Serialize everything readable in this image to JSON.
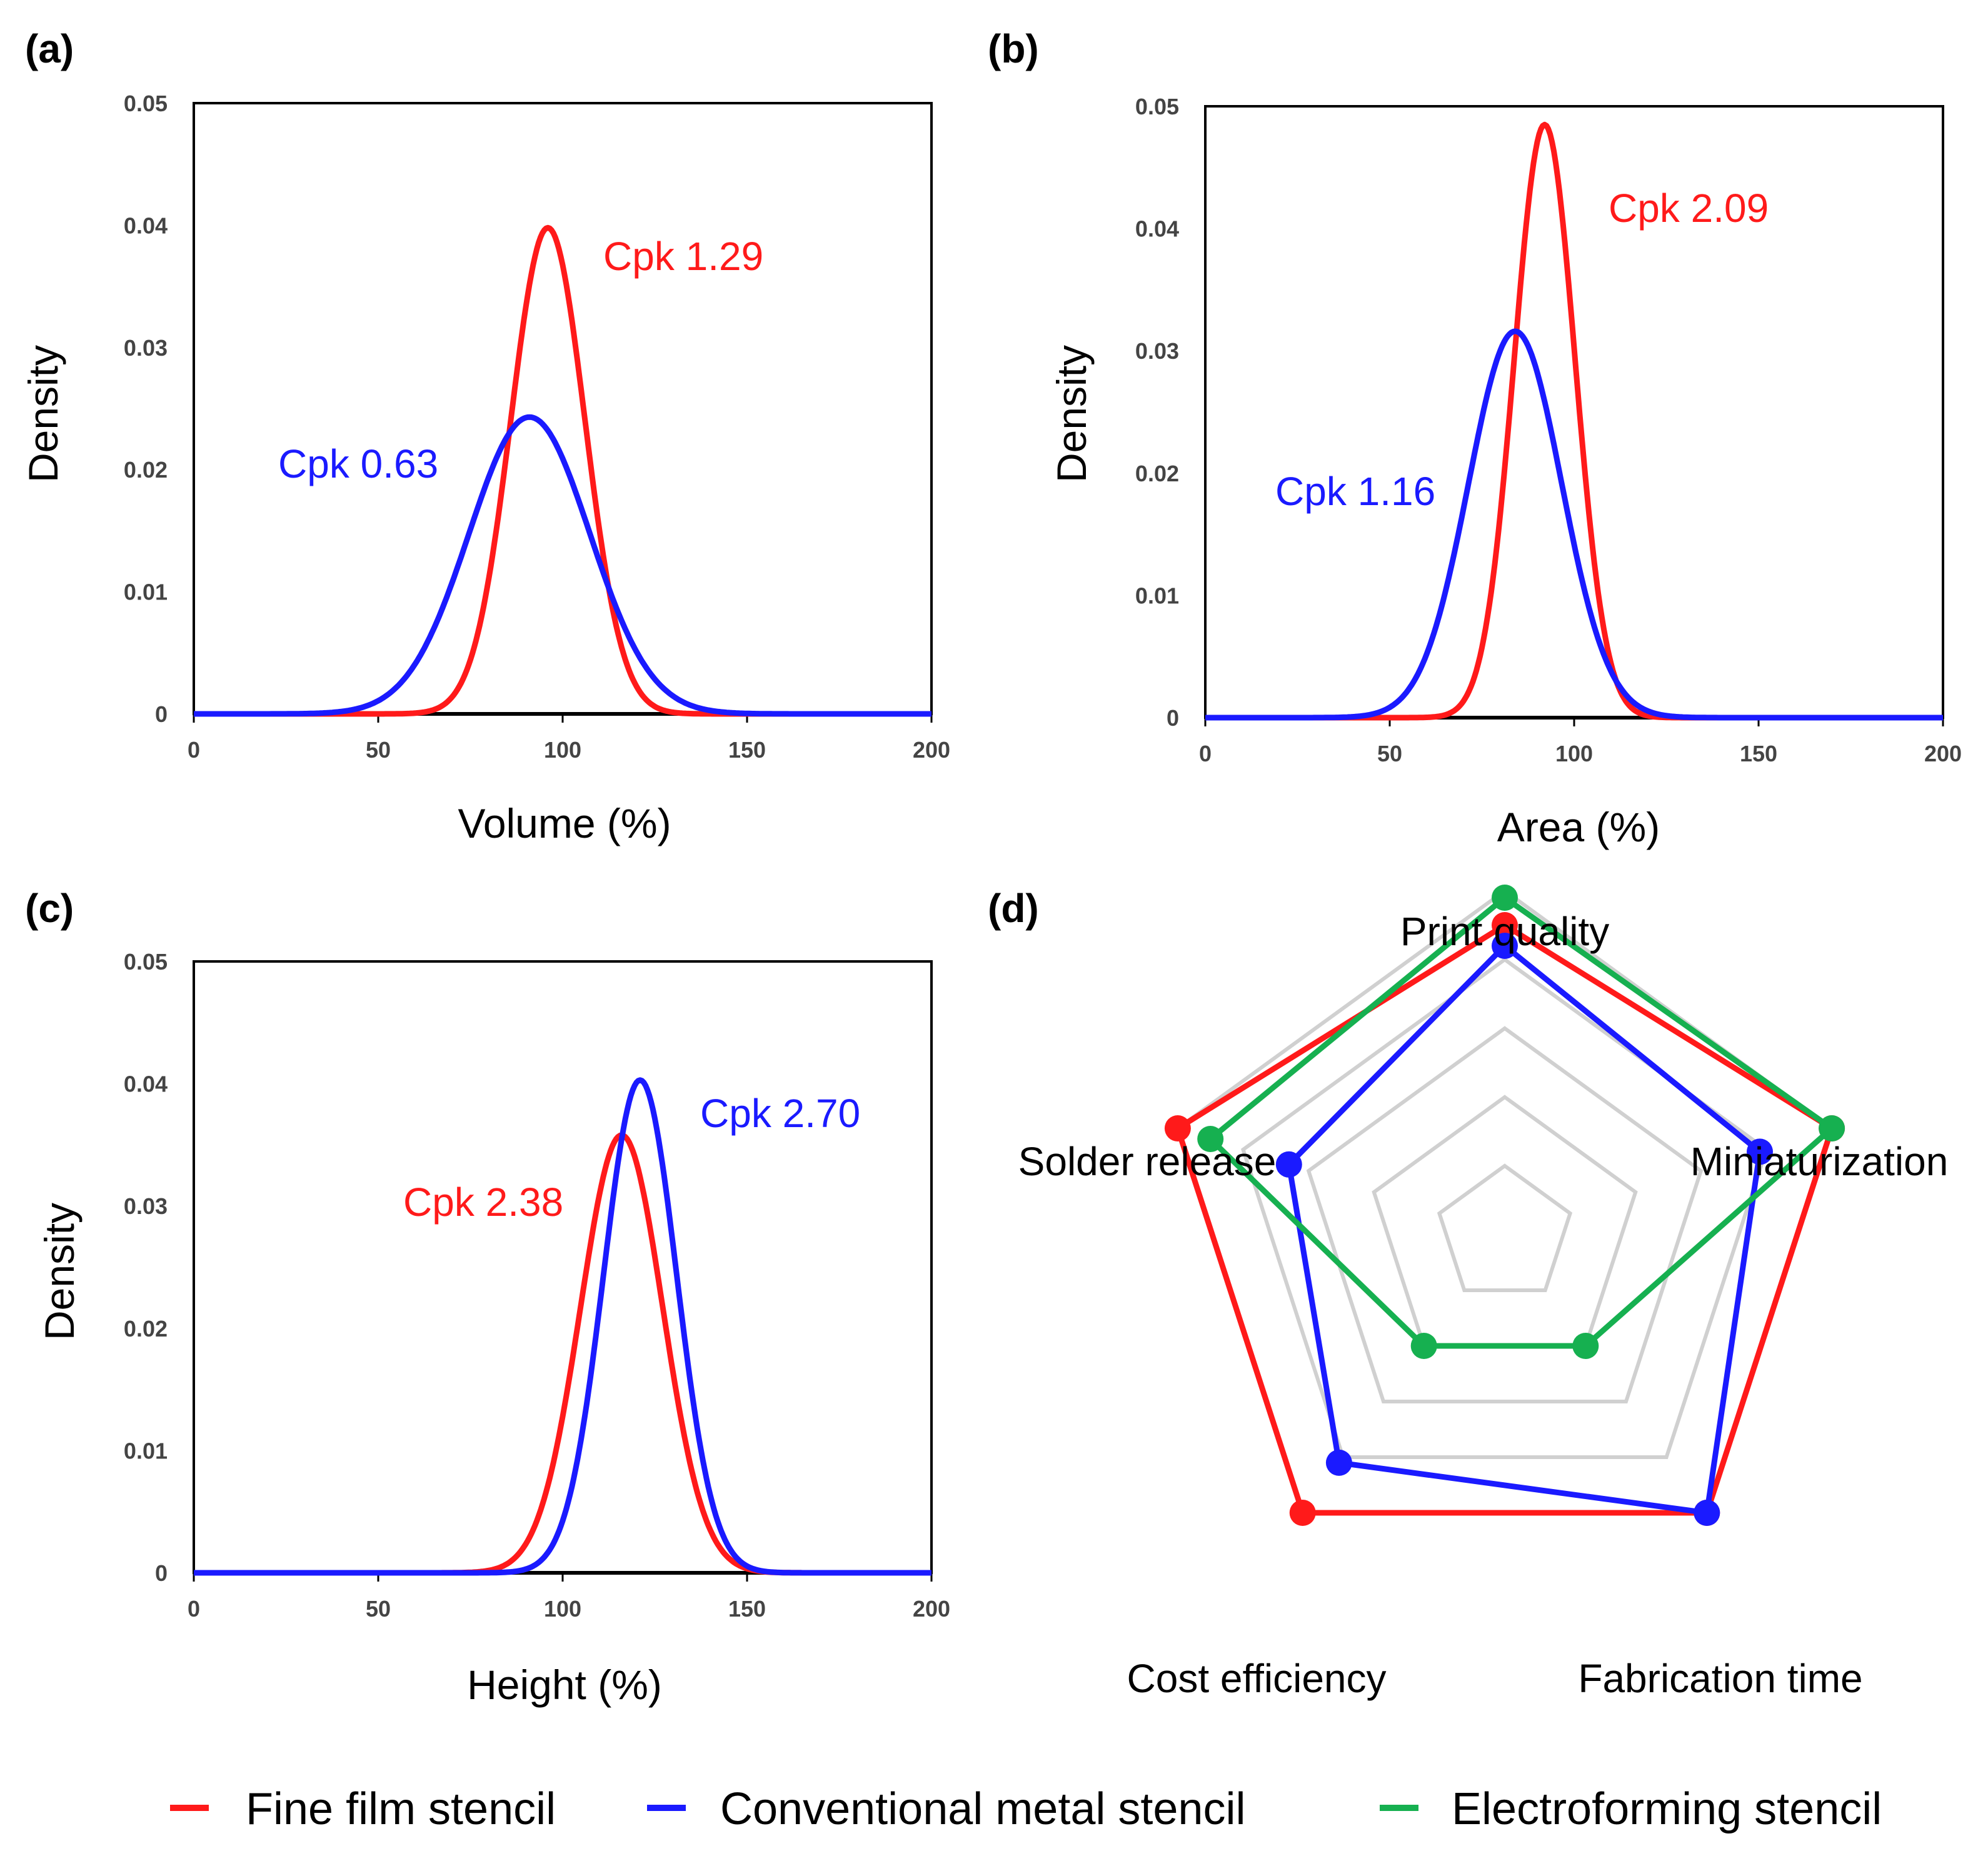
{
  "colors": {
    "fine_film": "#ff1a1a",
    "conventional": "#1a1aff",
    "electroforming": "#16b050",
    "grid": "#d0d0d0",
    "axis": "#000000"
  },
  "legend": [
    {
      "key": "fine_film",
      "label": "Fine film stencil"
    },
    {
      "key": "conventional",
      "label": "Conventional metal stencil"
    },
    {
      "key": "electroforming",
      "label": "Electroforming stencil"
    }
  ],
  "chart_data": [
    {
      "panel": "(a)",
      "type": "line",
      "xlabel": "Volume (%)",
      "ylabel": "Density",
      "xlim": [
        0,
        200
      ],
      "ylim": [
        0,
        0.05
      ],
      "xticks": [
        "0",
        "50",
        "100",
        "150",
        "200"
      ],
      "yticks": [
        "0",
        "0.01",
        "0.02",
        "0.03",
        "0.04",
        "0.05"
      ],
      "series": [
        {
          "key": "fine_film",
          "name": "Fine film stencil",
          "mean": 96,
          "peak": 0.0398,
          "cpk_label": "Cpk 1.29"
        },
        {
          "key": "conventional",
          "name": "Conventional metal stencil",
          "mean": 91,
          "peak": 0.0243,
          "cpk_label": "Cpk 0.63"
        }
      ]
    },
    {
      "panel": "(b)",
      "type": "line",
      "xlabel": "Area (%)",
      "ylabel": "Density",
      "xlim": [
        0,
        200
      ],
      "ylim": [
        0,
        0.05
      ],
      "xticks": [
        "0",
        "50",
        "100",
        "150",
        "200"
      ],
      "yticks": [
        "0",
        "0.01",
        "0.02",
        "0.03",
        "0.04",
        "0.05"
      ],
      "series": [
        {
          "key": "fine_film",
          "name": "Fine film stencil",
          "mean": 92,
          "peak": 0.0485,
          "cpk_label": "Cpk 2.09"
        },
        {
          "key": "conventional",
          "name": "Conventional metal stencil",
          "mean": 84,
          "peak": 0.0316,
          "cpk_label": "Cpk 1.16"
        }
      ]
    },
    {
      "panel": "(c)",
      "type": "line",
      "xlabel": "Height (%)",
      "ylabel": "Density",
      "xlim": [
        0,
        200
      ],
      "ylim": [
        0,
        0.05
      ],
      "xticks": [
        "0",
        "50",
        "100",
        "150",
        "200"
      ],
      "yticks": [
        "0",
        "0.01",
        "0.02",
        "0.03",
        "0.04",
        "0.05"
      ],
      "series": [
        {
          "key": "fine_film",
          "name": "Fine film stencil",
          "mean": 116,
          "peak": 0.0358,
          "cpk_label": "Cpk 2.38"
        },
        {
          "key": "conventional",
          "name": "Conventional metal stencil",
          "mean": 121,
          "peak": 0.0403,
          "cpk_label": "Cpk 2.70"
        }
      ]
    },
    {
      "panel": "(d)",
      "type": "radar",
      "axes": [
        "Print quality",
        "Miniaturization",
        "Fabrication time",
        "Cost efficiency",
        "Solder release"
      ],
      "rmax": 5,
      "series": [
        {
          "key": "fine_film",
          "name": "Fine film stencil",
          "values": [
            4.5,
            5,
            5,
            5,
            5
          ]
        },
        {
          "key": "conventional",
          "name": "Conventional metal stencil",
          "values": [
            4.2,
            3.9,
            5,
            4.1,
            3.3
          ]
        },
        {
          "key": "electroforming",
          "name": "Electroforming stencil",
          "values": [
            4.9,
            5,
            2,
            2,
            4.5
          ]
        }
      ]
    }
  ]
}
